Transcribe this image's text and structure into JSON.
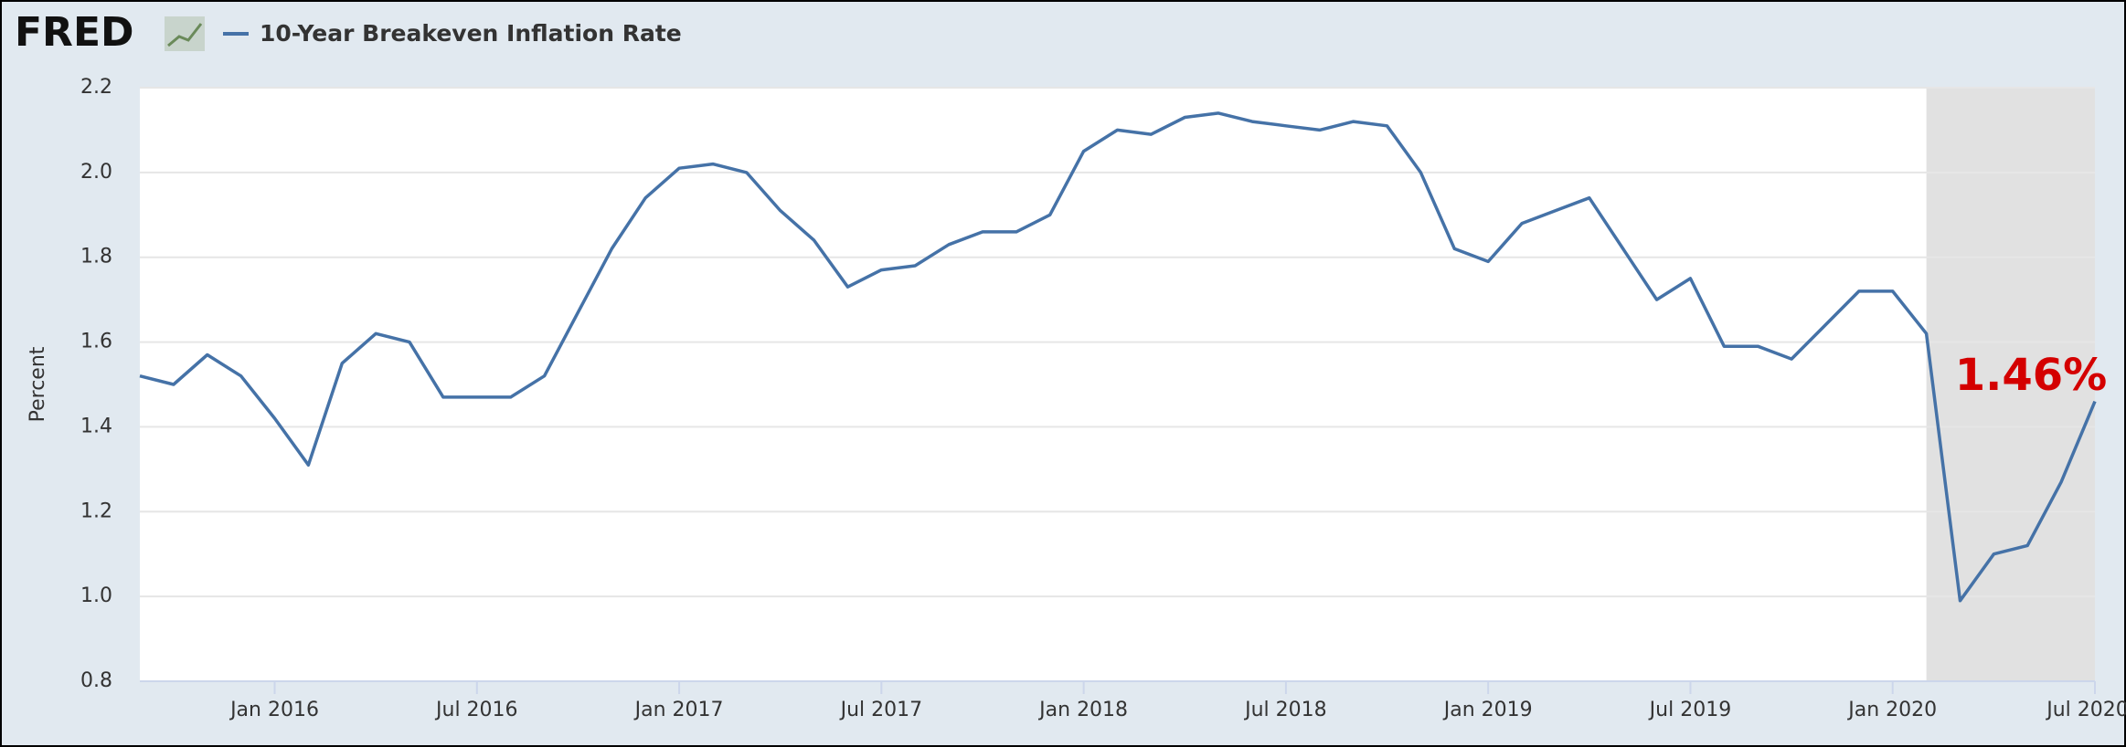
{
  "header": {
    "logo": "FRED"
  },
  "chart_data": {
    "type": "line",
    "ylabel": "Percent",
    "x": [
      "2015-09",
      "2015-10",
      "2015-11",
      "2015-12",
      "2016-01",
      "2016-02",
      "2016-03",
      "2016-04",
      "2016-05",
      "2016-06",
      "2016-07",
      "2016-08",
      "2016-09",
      "2016-10",
      "2016-11",
      "2016-12",
      "2017-01",
      "2017-02",
      "2017-03",
      "2017-04",
      "2017-05",
      "2017-06",
      "2017-07",
      "2017-08",
      "2017-09",
      "2017-10",
      "2017-11",
      "2017-12",
      "2018-01",
      "2018-02",
      "2018-03",
      "2018-04",
      "2018-05",
      "2018-06",
      "2018-07",
      "2018-08",
      "2018-09",
      "2018-10",
      "2018-11",
      "2018-12",
      "2019-01",
      "2019-02",
      "2019-03",
      "2019-04",
      "2019-05",
      "2019-06",
      "2019-07",
      "2019-08",
      "2019-09",
      "2019-10",
      "2019-11",
      "2019-12",
      "2020-01",
      "2020-02",
      "2020-03",
      "2020-04",
      "2020-05",
      "2020-06",
      "2020-07"
    ],
    "series": [
      {
        "name": "10-Year Breakeven Inflation Rate",
        "color": "#4572a7",
        "values": [
          1.52,
          1.5,
          1.57,
          1.52,
          1.42,
          1.31,
          1.55,
          1.62,
          1.6,
          1.47,
          1.47,
          1.47,
          1.52,
          1.67,
          1.82,
          1.94,
          2.01,
          2.02,
          2.0,
          1.91,
          1.84,
          1.73,
          1.77,
          1.78,
          1.83,
          1.86,
          1.86,
          1.9,
          2.05,
          2.1,
          2.09,
          2.13,
          2.14,
          2.12,
          2.11,
          2.1,
          2.12,
          2.11,
          2.0,
          1.82,
          1.79,
          1.88,
          1.91,
          1.94,
          1.82,
          1.7,
          1.75,
          1.59,
          1.59,
          1.56,
          1.64,
          1.72,
          1.72,
          1.62,
          0.99,
          1.1,
          1.12,
          1.27,
          1.46
        ]
      }
    ],
    "xlim": [
      "2015-09",
      "2020-07"
    ],
    "xticks": [
      {
        "value": "2016-01",
        "label": "Jan 2016"
      },
      {
        "value": "2016-07",
        "label": "Jul 2016"
      },
      {
        "value": "2017-01",
        "label": "Jan 2017"
      },
      {
        "value": "2017-07",
        "label": "Jul 2017"
      },
      {
        "value": "2018-01",
        "label": "Jan 2018"
      },
      {
        "value": "2018-07",
        "label": "Jul 2018"
      },
      {
        "value": "2019-01",
        "label": "Jan 2019"
      },
      {
        "value": "2019-07",
        "label": "Jul 2019"
      },
      {
        "value": "2020-01",
        "label": "Jan 2020"
      },
      {
        "value": "2020-07",
        "label": "Jul 2020"
      }
    ],
    "ylim": [
      0.8,
      2.2
    ],
    "yticks": [
      0.8,
      {
        "value": 1.0,
        "label": "1.0"
      },
      1.2,
      1.4,
      1.6,
      1.8,
      {
        "value": 2.0,
        "label": "2.0"
      },
      2.2
    ],
    "grid": true,
    "recession": [
      "2020-02",
      "2020-07"
    ],
    "annotation": "1.46%",
    "annotation_color": "#d40000"
  }
}
